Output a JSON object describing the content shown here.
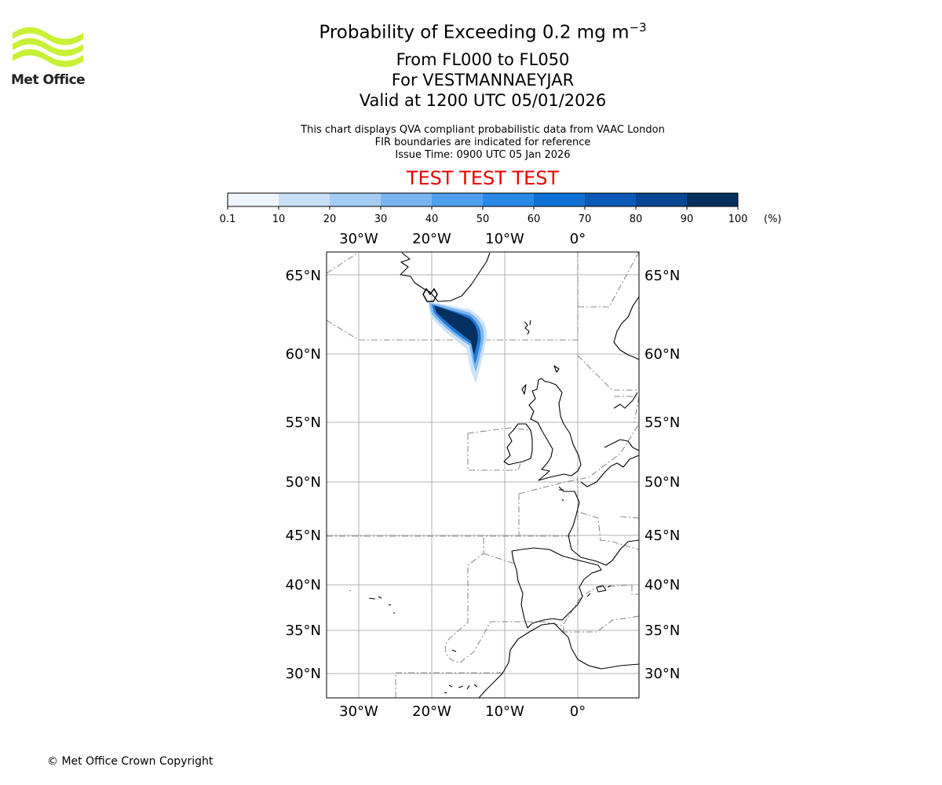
{
  "logo": {
    "text": "Met Office",
    "icon": "met-office-wave-logo"
  },
  "header": {
    "title_main": "Probability of Exceeding 0.2 mg m",
    "title_sup": "−3",
    "levels": "From FL000 to FL050",
    "location": "For VESTMANNAEYJAR",
    "valid": "Valid at 1200 UTC 05/01/2026"
  },
  "subtitle": {
    "line1": "This chart displays QVA compliant probabilistic data from VAAC London",
    "line2": "FIR boundaries are indicated for reference",
    "line3": "Issue Time: 0900 UTC 05 Jan 2026"
  },
  "banner": "TEST TEST TEST",
  "colorbar": {
    "ticks": [
      "0.1",
      "10",
      "20",
      "30",
      "40",
      "50",
      "60",
      "70",
      "80",
      "90",
      "100"
    ],
    "unit": "(%)",
    "colors": [
      "#eef5fd",
      "#c8e0f7",
      "#a4ccf3",
      "#79b5f0",
      "#4ea0ef",
      "#2a88e6",
      "#1170d3",
      "#0b5ab5",
      "#084592",
      "#05305f"
    ]
  },
  "map": {
    "lon_labels": [
      "30°W",
      "20°W",
      "10°W",
      "0°"
    ],
    "lat_labels": [
      "65°N",
      "60°N",
      "55°N",
      "50°N",
      "45°N",
      "40°N",
      "35°N",
      "30°N"
    ]
  },
  "footer": {
    "copyright": "© Met Office Crown Copyright"
  }
}
